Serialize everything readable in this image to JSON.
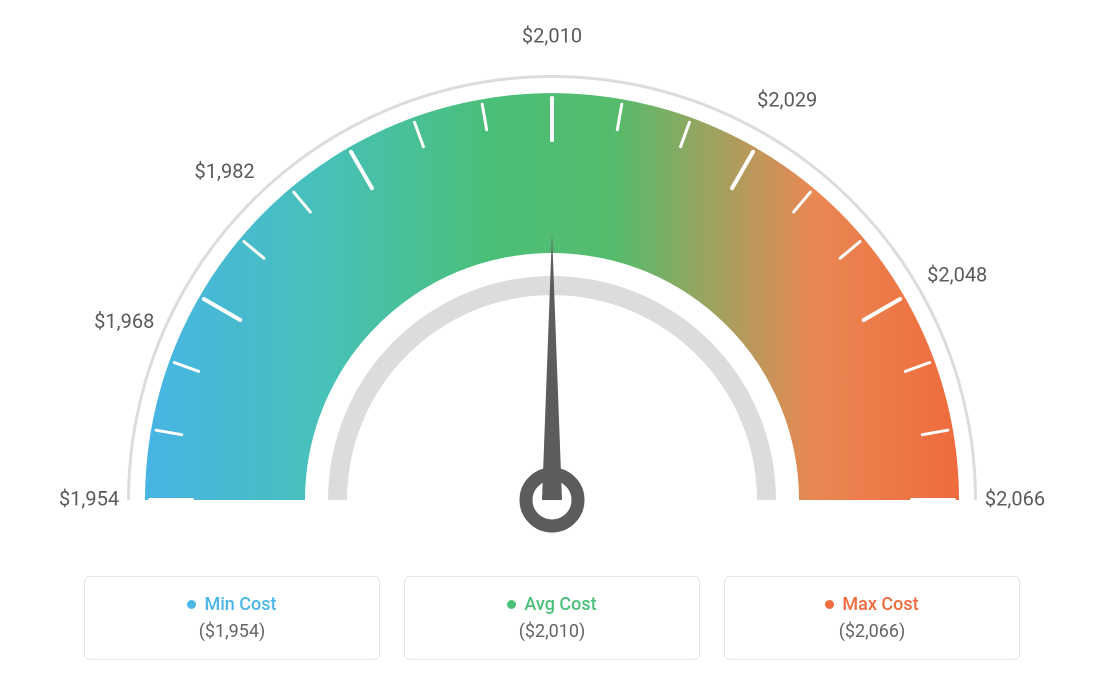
{
  "gauge": {
    "type": "gauge",
    "min": 1954,
    "max": 2066,
    "avg": 2010,
    "needle_value": 2010,
    "tick_values": [
      1954,
      1968,
      1982,
      2010,
      2029,
      2048,
      2066
    ],
    "tick_labels": [
      "$1,954",
      "$1,968",
      "$1,982",
      "$2,010",
      "$2,029",
      "$2,048",
      "$2,066"
    ],
    "major_tick_count": 7,
    "minor_ticks_between": 2,
    "colors": {
      "gradient_stops": [
        "#47b4e5",
        "#47c1b9",
        "#4abf79",
        "#56bb6b",
        "#e98853",
        "#ef6b3d"
      ],
      "outline": "#dcdcdc",
      "inner_arc": "#dcdcdc",
      "needle": "#5c5c5c",
      "tick_label": "#5a5a5a",
      "tick_mark": "#ffffff",
      "background": "#ffffff"
    },
    "geometry": {
      "outer_radius": 425,
      "band_outer": 407,
      "band_inner": 247,
      "inner_arc_outer": 224,
      "inner_arc_inner": 205,
      "start_angle_deg": 180,
      "end_angle_deg": 0
    },
    "label_fontsize": 20
  },
  "legend": {
    "items": [
      {
        "label": "Min Cost",
        "value": "($1,954)",
        "color": "#4cb6e6"
      },
      {
        "label": "Avg Cost",
        "value": "($2,010)",
        "color": "#4cc07b"
      },
      {
        "label": "Max Cost",
        "value": "($2,066)",
        "color": "#ef6c3e"
      }
    ],
    "label_fontsize": 18,
    "value_fontsize": 18,
    "value_color": "#646464",
    "card_border_color": "#e5e5e5",
    "card_border_radius": 6
  }
}
